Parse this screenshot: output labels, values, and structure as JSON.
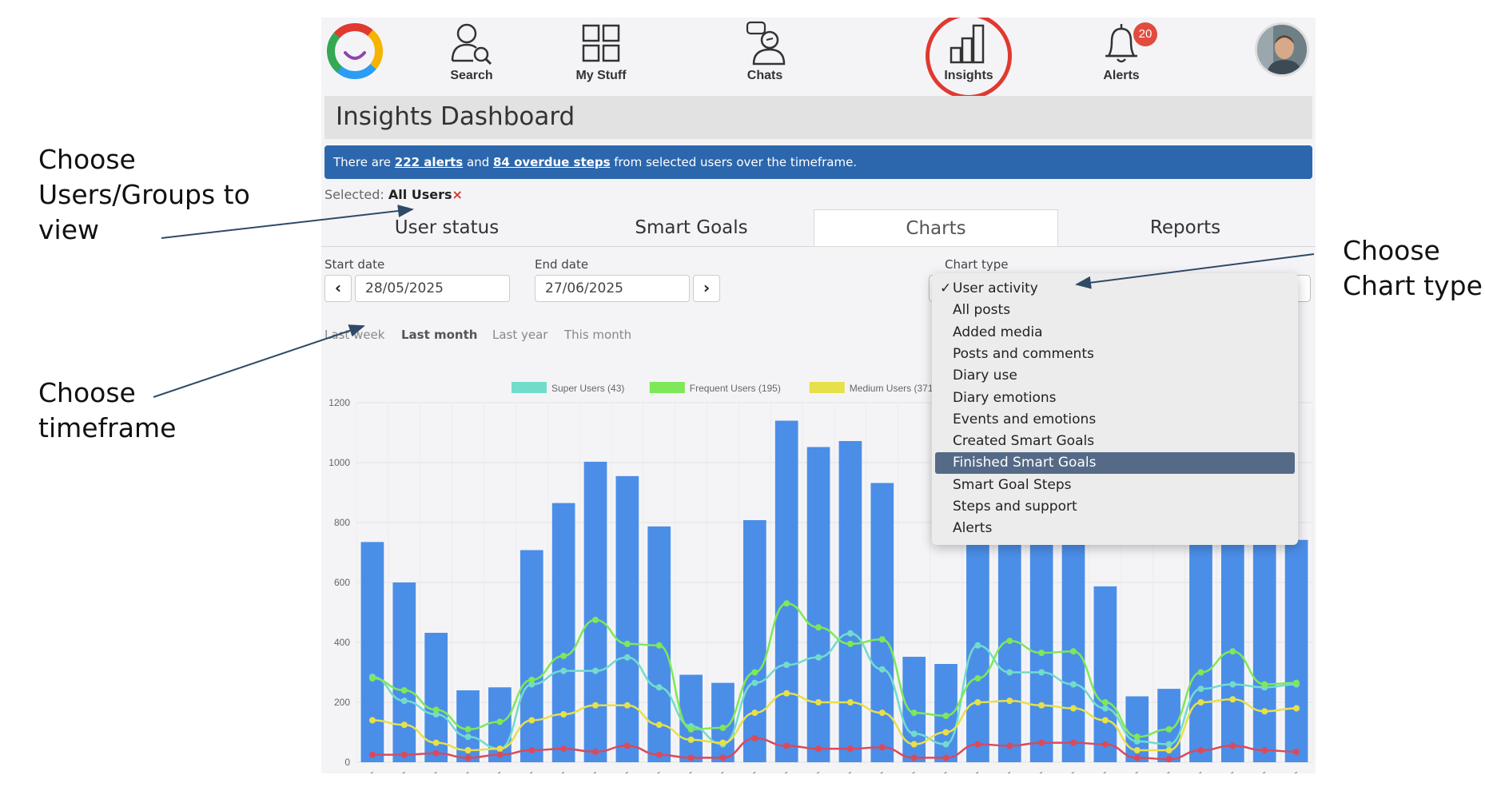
{
  "annotations": {
    "users": "Choose Users/Groups to view",
    "timeframe": "Choose timeframe",
    "chart_type": "Choose Chart type"
  },
  "nav": {
    "items": [
      {
        "label": "Search",
        "icon": "search-user-icon"
      },
      {
        "label": "My Stuff",
        "icon": "grid-icon"
      },
      {
        "label": "Chats",
        "icon": "chat-user-icon"
      },
      {
        "label": "Insights",
        "icon": "bar-chart-icon"
      },
      {
        "label": "Alerts",
        "icon": "bell-icon"
      }
    ],
    "alerts_badge": "20"
  },
  "page_title": "Insights Dashboard",
  "banner": {
    "prefix": "There are ",
    "alerts_link": "222 alerts",
    "middle": " and ",
    "steps_link": "84 overdue steps",
    "suffix": " from selected users over the timeframe."
  },
  "selected": {
    "label": "Selected:",
    "value": "All Users",
    "remove": "×"
  },
  "tabs": [
    "User status",
    "Smart Goals",
    "Charts",
    "Reports"
  ],
  "filters": {
    "start_label": "Start date",
    "start_value": "28/05/2025",
    "end_label": "End date",
    "end_value": "27/06/2025",
    "chart_type_label": "Chart type",
    "quick_ranges": [
      "Last week",
      "Last month",
      "Last year",
      "This month"
    ]
  },
  "chart_type_options": [
    "User activity",
    "All posts",
    "Added media",
    "Posts and comments",
    "Diary use",
    "Diary emotions",
    "Events and emotions",
    "Created Smart Goals",
    "Finished Smart Goals",
    "Smart Goal Steps",
    "Steps and support",
    "Alerts"
  ],
  "chart_type_selected": "User activity",
  "chart_type_highlighted": "Finished Smart Goals",
  "colors": {
    "bar": "#4b8ee8",
    "super": "#72dccb",
    "frequent": "#7ee858",
    "medium": "#e6e04a",
    "low": "#d94a5c",
    "banner": "#2c67ad",
    "ring": "#e0392f"
  },
  "chart_data": {
    "type": "bar",
    "ylim": [
      0,
      1200
    ],
    "yticks": [
      0,
      200,
      400,
      600,
      800,
      1000,
      1200
    ],
    "categories": [
      "/2025",
      "/2025",
      "/2025",
      "/2025",
      "/2025",
      "/2025",
      "/2025",
      "/2025",
      "/2025",
      "/2025",
      "/2025",
      "/2025",
      "/2025",
      "/2025",
      "/2025",
      "/2025",
      "/2025",
      "/2025",
      "/2025",
      "/2025",
      "/2025",
      "/2025",
      "/2025",
      "/2025",
      "/2025",
      "/2025",
      "/2025",
      "/2025",
      "/2025",
      "/2025"
    ],
    "series": [
      {
        "name": "Total",
        "type": "bar",
        "values": [
          735,
          600,
          432,
          240,
          250,
          708,
          865,
          1003,
          955,
          787,
          292,
          265,
          808,
          1140,
          1052,
          1072,
          932,
          352,
          328,
          860,
          900,
          880,
          850,
          587,
          220,
          245,
          870,
          900,
          910,
          742
        ]
      },
      {
        "name": "Super Users (43)",
        "type": "line",
        "values": [
          285,
          205,
          160,
          85,
          45,
          260,
          305,
          305,
          350,
          250,
          120,
          60,
          265,
          325,
          350,
          430,
          310,
          95,
          60,
          390,
          300,
          300,
          260,
          180,
          70,
          60,
          245,
          260,
          250,
          260
        ]
      },
      {
        "name": "Frequent Users (195)",
        "type": "line",
        "values": [
          280,
          240,
          175,
          110,
          135,
          275,
          355,
          475,
          395,
          390,
          110,
          115,
          300,
          530,
          450,
          395,
          410,
          165,
          155,
          280,
          405,
          365,
          370,
          200,
          85,
          110,
          300,
          370,
          260,
          265
        ]
      },
      {
        "name": "Medium Users (371)",
        "type": "line",
        "values": [
          140,
          125,
          65,
          40,
          45,
          140,
          160,
          190,
          190,
          125,
          75,
          65,
          165,
          230,
          200,
          200,
          165,
          60,
          100,
          200,
          205,
          190,
          180,
          140,
          40,
          40,
          200,
          210,
          170,
          180
        ]
      },
      {
        "name": "",
        "type": "line",
        "values": [
          25,
          25,
          30,
          15,
          25,
          40,
          45,
          35,
          55,
          25,
          15,
          15,
          80,
          55,
          45,
          45,
          50,
          15,
          15,
          60,
          55,
          65,
          65,
          60,
          15,
          10,
          40,
          55,
          40,
          35
        ]
      }
    ]
  }
}
